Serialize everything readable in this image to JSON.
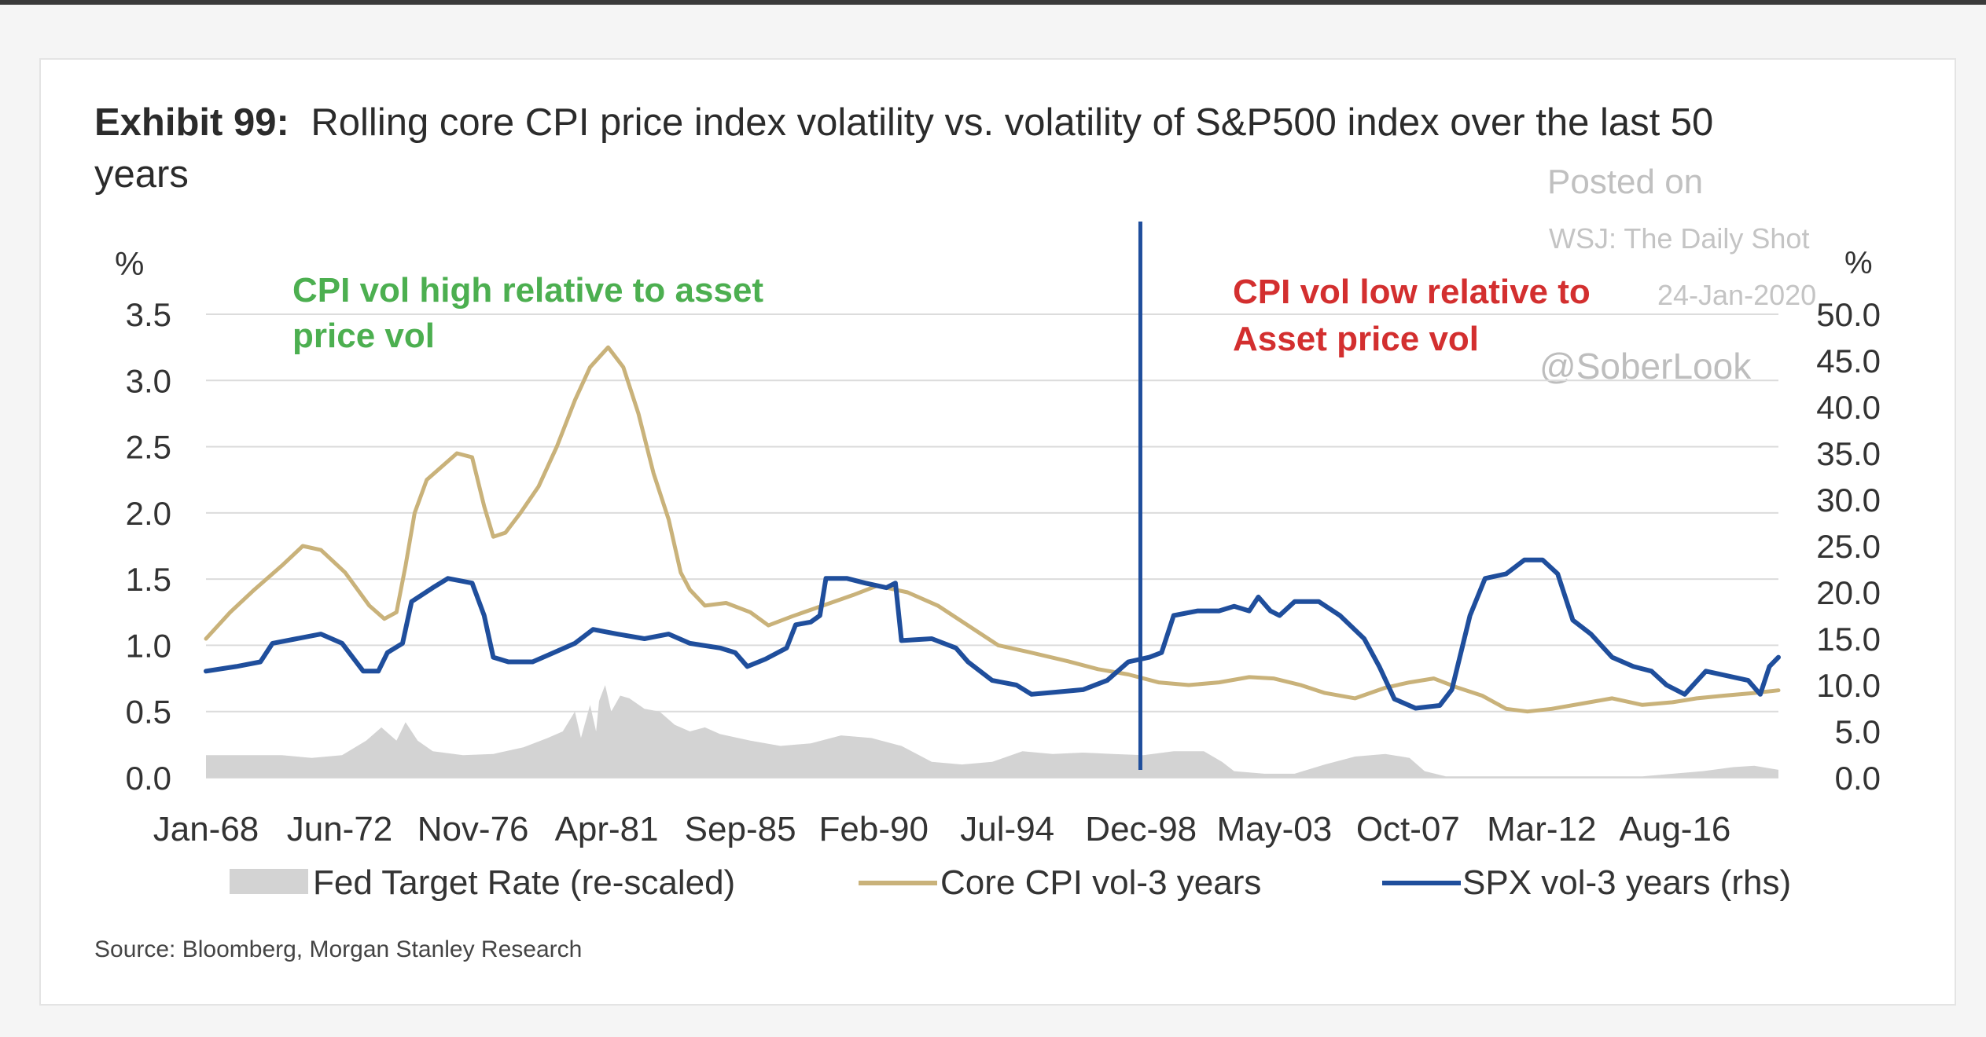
{
  "window": {
    "topbar_color": "#3a3a3a"
  },
  "exhibit": {
    "label": "Exhibit 99:",
    "title_line1": "Rolling core CPI price index volatility vs. volatility of S&P500 index over the last 50",
    "title_line2": "years",
    "source": "Source: Bloomberg, Morgan Stanley Research"
  },
  "watermark": {
    "line1": "Posted on",
    "line2": "WSJ: The Daily Shot",
    "line3": "24-Jan-2020",
    "handle": "@SoberLook"
  },
  "chart_data": {
    "type": "line",
    "title": "Rolling core CPI price index volatility vs. volatility of S&P500 index over the last 50 years",
    "x_range": [
      1968.0,
      2020.0
    ],
    "x_tick_labels": [
      "Jan-68",
      "Jun-72",
      "Nov-76",
      "Apr-81",
      "Sep-85",
      "Feb-90",
      "Jul-94",
      "Dec-98",
      "May-03",
      "Oct-07",
      "Mar-12",
      "Aug-16"
    ],
    "x_tick_values": [
      1968.0,
      1972.42,
      1976.83,
      1981.25,
      1985.67,
      1990.08,
      1994.5,
      1998.92,
      2003.33,
      2007.75,
      2012.17,
      2016.58
    ],
    "y_left": {
      "label": "%",
      "lim": [
        0,
        3.5
      ],
      "ticks": [
        "0.0",
        "0.5",
        "1.0",
        "1.5",
        "2.0",
        "2.5",
        "3.0",
        "3.5"
      ],
      "tick_values": [
        0,
        0.5,
        1,
        1.5,
        2,
        2.5,
        3,
        3.5
      ]
    },
    "y_right": {
      "label": "%",
      "lim": [
        0,
        50
      ],
      "ticks": [
        "0.0",
        "5.0",
        "10.0",
        "15.0",
        "20.0",
        "25.0",
        "30.0",
        "35.0",
        "40.0",
        "45.0",
        "50.0"
      ],
      "tick_values": [
        0,
        5,
        10,
        15,
        20,
        25,
        30,
        35,
        40,
        45,
        50
      ]
    },
    "grid": true,
    "legend_position": "bottom",
    "divider_x": 1998.9,
    "annotations": [
      {
        "text_line1": "CPI vol high relative to asset",
        "text_line2": "price vol",
        "color": "#4caf50"
      },
      {
        "text_line1": "CPI vol low relative to",
        "text_line2": "Asset price vol",
        "color": "#d32f2f"
      }
    ],
    "series": [
      {
        "name": "Fed Target Rate (re-scaled)",
        "kind": "area",
        "axis": "left",
        "color": "#d3d3d3",
        "points": [
          [
            1968.0,
            0.17
          ],
          [
            1969.5,
            0.17
          ],
          [
            1970.5,
            0.17
          ],
          [
            1971.5,
            0.15
          ],
          [
            1972.5,
            0.17
          ],
          [
            1973.3,
            0.28
          ],
          [
            1973.8,
            0.38
          ],
          [
            1974.3,
            0.28
          ],
          [
            1974.6,
            0.42
          ],
          [
            1975.0,
            0.28
          ],
          [
            1975.5,
            0.2
          ],
          [
            1976.5,
            0.17
          ],
          [
            1977.5,
            0.18
          ],
          [
            1978.5,
            0.23
          ],
          [
            1979.3,
            0.3
          ],
          [
            1979.8,
            0.35
          ],
          [
            1980.2,
            0.5
          ],
          [
            1980.4,
            0.3
          ],
          [
            1980.7,
            0.55
          ],
          [
            1980.9,
            0.35
          ],
          [
            1981.0,
            0.58
          ],
          [
            1981.2,
            0.7
          ],
          [
            1981.4,
            0.5
          ],
          [
            1981.7,
            0.62
          ],
          [
            1982.0,
            0.6
          ],
          [
            1982.5,
            0.52
          ],
          [
            1983.0,
            0.5
          ],
          [
            1983.5,
            0.4
          ],
          [
            1984.0,
            0.35
          ],
          [
            1984.5,
            0.38
          ],
          [
            1985.0,
            0.33
          ],
          [
            1986.0,
            0.28
          ],
          [
            1987.0,
            0.24
          ],
          [
            1988.0,
            0.26
          ],
          [
            1989.0,
            0.32
          ],
          [
            1990.0,
            0.3
          ],
          [
            1991.0,
            0.24
          ],
          [
            1992.0,
            0.12
          ],
          [
            1993.0,
            0.1
          ],
          [
            1994.0,
            0.12
          ],
          [
            1995.0,
            0.2
          ],
          [
            1996.0,
            0.18
          ],
          [
            1997.0,
            0.19
          ],
          [
            1998.0,
            0.18
          ],
          [
            1999.0,
            0.17
          ],
          [
            2000.0,
            0.2
          ],
          [
            2001.0,
            0.2
          ],
          [
            2001.6,
            0.12
          ],
          [
            2002.0,
            0.05
          ],
          [
            2003.0,
            0.03
          ],
          [
            2004.0,
            0.03
          ],
          [
            2005.0,
            0.1
          ],
          [
            2006.0,
            0.16
          ],
          [
            2007.0,
            0.18
          ],
          [
            2007.8,
            0.15
          ],
          [
            2008.3,
            0.05
          ],
          [
            2009.0,
            0.01
          ],
          [
            2015.5,
            0.01
          ],
          [
            2016.5,
            0.03
          ],
          [
            2017.5,
            0.05
          ],
          [
            2018.5,
            0.08
          ],
          [
            2019.2,
            0.09
          ],
          [
            2020.0,
            0.06
          ]
        ]
      },
      {
        "name": "Core CPI vol-3 years",
        "kind": "line",
        "axis": "left",
        "color": "#c9b27a",
        "points": [
          [
            1968.0,
            1.05
          ],
          [
            1968.8,
            1.25
          ],
          [
            1969.6,
            1.42
          ],
          [
            1970.5,
            1.6
          ],
          [
            1971.2,
            1.75
          ],
          [
            1971.8,
            1.72
          ],
          [
            1972.6,
            1.55
          ],
          [
            1973.4,
            1.3
          ],
          [
            1973.9,
            1.2
          ],
          [
            1974.3,
            1.25
          ],
          [
            1974.6,
            1.6
          ],
          [
            1974.9,
            2.0
          ],
          [
            1975.3,
            2.25
          ],
          [
            1975.8,
            2.35
          ],
          [
            1976.3,
            2.45
          ],
          [
            1976.8,
            2.42
          ],
          [
            1977.2,
            2.05
          ],
          [
            1977.5,
            1.82
          ],
          [
            1977.9,
            1.85
          ],
          [
            1978.4,
            2.0
          ],
          [
            1979.0,
            2.2
          ],
          [
            1979.6,
            2.5
          ],
          [
            1980.2,
            2.85
          ],
          [
            1980.7,
            3.1
          ],
          [
            1981.3,
            3.25
          ],
          [
            1981.8,
            3.1
          ],
          [
            1982.3,
            2.75
          ],
          [
            1982.8,
            2.3
          ],
          [
            1983.3,
            1.95
          ],
          [
            1983.7,
            1.55
          ],
          [
            1984.0,
            1.42
          ],
          [
            1984.5,
            1.3
          ],
          [
            1985.2,
            1.32
          ],
          [
            1986.0,
            1.25
          ],
          [
            1986.6,
            1.15
          ],
          [
            1987.4,
            1.22
          ],
          [
            1988.4,
            1.3
          ],
          [
            1989.4,
            1.38
          ],
          [
            1990.2,
            1.45
          ],
          [
            1991.2,
            1.4
          ],
          [
            1992.2,
            1.3
          ],
          [
            1993.2,
            1.15
          ],
          [
            1994.2,
            1.0
          ],
          [
            1995.2,
            0.95
          ],
          [
            1996.5,
            0.88
          ],
          [
            1997.5,
            0.82
          ],
          [
            1998.5,
            0.78
          ],
          [
            1999.5,
            0.72
          ],
          [
            2000.5,
            0.7
          ],
          [
            2001.5,
            0.72
          ],
          [
            2002.5,
            0.76
          ],
          [
            2003.3,
            0.75
          ],
          [
            2004.2,
            0.7
          ],
          [
            2005.0,
            0.64
          ],
          [
            2006.0,
            0.6
          ],
          [
            2007.0,
            0.68
          ],
          [
            2007.8,
            0.72
          ],
          [
            2008.6,
            0.75
          ],
          [
            2009.4,
            0.68
          ],
          [
            2010.2,
            0.62
          ],
          [
            2011.0,
            0.52
          ],
          [
            2011.7,
            0.5
          ],
          [
            2012.5,
            0.52
          ],
          [
            2013.5,
            0.56
          ],
          [
            2014.5,
            0.6
          ],
          [
            2015.5,
            0.55
          ],
          [
            2016.5,
            0.57
          ],
          [
            2017.3,
            0.6
          ],
          [
            2018.2,
            0.62
          ],
          [
            2019.2,
            0.64
          ],
          [
            2020.0,
            0.66
          ]
        ]
      },
      {
        "name": "SPX vol-3 years (rhs)",
        "kind": "line",
        "axis": "right",
        "color": "#1f4e9c",
        "points": [
          [
            1968.0,
            11.5
          ],
          [
            1969.0,
            12.0
          ],
          [
            1969.8,
            12.5
          ],
          [
            1970.2,
            14.5
          ],
          [
            1971.0,
            15.0
          ],
          [
            1971.8,
            15.5
          ],
          [
            1972.5,
            14.5
          ],
          [
            1973.2,
            11.5
          ],
          [
            1973.7,
            11.5
          ],
          [
            1974.0,
            13.5
          ],
          [
            1974.5,
            14.5
          ],
          [
            1974.8,
            19.0
          ],
          [
            1975.5,
            20.5
          ],
          [
            1976.0,
            21.5
          ],
          [
            1976.8,
            21.0
          ],
          [
            1977.2,
            17.5
          ],
          [
            1977.5,
            13.0
          ],
          [
            1978.0,
            12.5
          ],
          [
            1978.8,
            12.5
          ],
          [
            1979.5,
            13.5
          ],
          [
            1980.2,
            14.5
          ],
          [
            1980.8,
            16.0
          ],
          [
            1981.6,
            15.5
          ],
          [
            1982.5,
            15.0
          ],
          [
            1983.3,
            15.5
          ],
          [
            1984.0,
            14.5
          ],
          [
            1985.0,
            14.0
          ],
          [
            1985.5,
            13.5
          ],
          [
            1985.9,
            12.0
          ],
          [
            1986.5,
            12.8
          ],
          [
            1987.2,
            14.0
          ],
          [
            1987.5,
            16.5
          ],
          [
            1988.0,
            16.8
          ],
          [
            1988.3,
            17.5
          ],
          [
            1988.5,
            21.5
          ],
          [
            1989.2,
            21.5
          ],
          [
            1989.8,
            21.0
          ],
          [
            1990.5,
            20.5
          ],
          [
            1990.8,
            21.0
          ],
          [
            1991.0,
            14.8
          ],
          [
            1992.0,
            15.0
          ],
          [
            1992.8,
            14.0
          ],
          [
            1993.2,
            12.5
          ],
          [
            1994.0,
            10.5
          ],
          [
            1994.8,
            10.0
          ],
          [
            1995.3,
            9.0
          ],
          [
            1996.0,
            9.2
          ],
          [
            1997.0,
            9.5
          ],
          [
            1997.8,
            10.5
          ],
          [
            1998.5,
            12.5
          ],
          [
            1999.2,
            13.0
          ],
          [
            1999.6,
            13.5
          ],
          [
            2000.0,
            17.5
          ],
          [
            2000.8,
            18.0
          ],
          [
            2001.5,
            18.0
          ],
          [
            2002.0,
            18.5
          ],
          [
            2002.5,
            18.0
          ],
          [
            2002.8,
            19.5
          ],
          [
            2003.2,
            18.0
          ],
          [
            2003.5,
            17.5
          ],
          [
            2004.0,
            19.0
          ],
          [
            2004.8,
            19.0
          ],
          [
            2005.5,
            17.5
          ],
          [
            2006.3,
            15.0
          ],
          [
            2006.8,
            12.0
          ],
          [
            2007.3,
            8.5
          ],
          [
            2008.0,
            7.5
          ],
          [
            2008.8,
            7.8
          ],
          [
            2009.2,
            9.5
          ],
          [
            2009.8,
            17.5
          ],
          [
            2010.3,
            21.5
          ],
          [
            2011.0,
            22.0
          ],
          [
            2011.6,
            23.5
          ],
          [
            2012.2,
            23.5
          ],
          [
            2012.7,
            22.0
          ],
          [
            2013.2,
            17.0
          ],
          [
            2013.8,
            15.5
          ],
          [
            2014.5,
            13.0
          ],
          [
            2015.2,
            12.0
          ],
          [
            2015.8,
            11.5
          ],
          [
            2016.3,
            10.0
          ],
          [
            2016.9,
            9.0
          ],
          [
            2017.6,
            11.5
          ],
          [
            2018.3,
            11.0
          ],
          [
            2019.0,
            10.5
          ],
          [
            2019.4,
            9.0
          ],
          [
            2019.7,
            12.0
          ],
          [
            2020.0,
            13.0
          ]
        ]
      }
    ]
  }
}
